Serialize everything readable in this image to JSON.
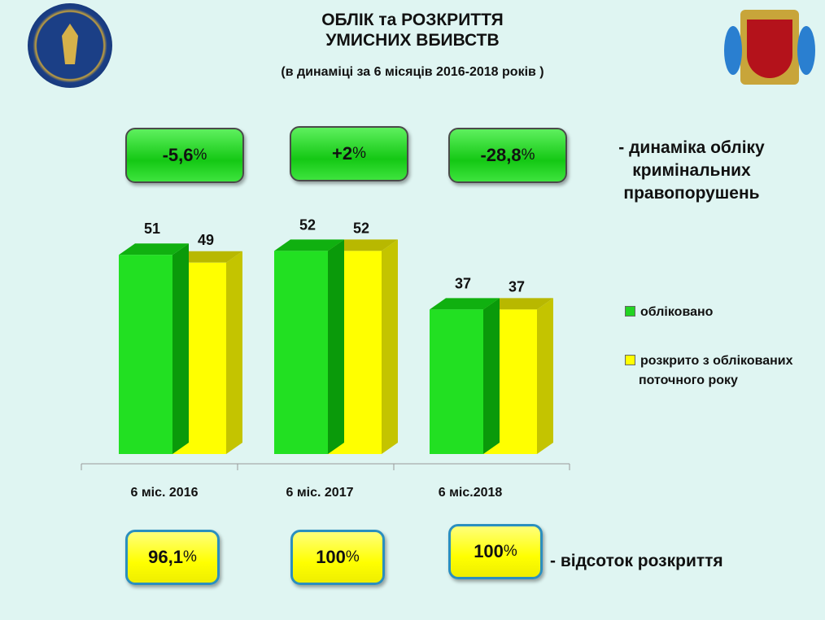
{
  "header": {
    "title_line1": "ОБЛІК та РОЗКРИТТЯ",
    "title_line2": "УМИСНИХ ВБИВСТВ",
    "subtitle": "(в динаміці за 6 місяців 2016-2018 років )"
  },
  "logos": {
    "left": "prosecutor-emblem",
    "right": "zaporizhzhia-coat-of-arms"
  },
  "dynamics": {
    "values": [
      "-5,6",
      "+2",
      "-28,8"
    ],
    "unit": "%",
    "label": "- динаміка обліку кримінальних правопорушень",
    "color": "#22d422"
  },
  "disclosure": {
    "values": [
      "96,1",
      "100",
      "100"
    ],
    "unit": "%",
    "label": "- відсоток розкриття",
    "color": "#ffff00"
  },
  "chart_data": {
    "type": "bar",
    "categories": [
      "6 міс. 2016",
      "6 міс. 2017",
      "6 міс.2018"
    ],
    "series": [
      {
        "name": "обліковано",
        "values": [
          51,
          52,
          37
        ],
        "color": "#22e022"
      },
      {
        "name": "розкрито з облікованих поточного року",
        "values": [
          49,
          52,
          37
        ],
        "color": "#ffff00"
      }
    ],
    "ylim": [
      0,
      55
    ],
    "grid": false,
    "legend": "right",
    "data_labels": true,
    "style": "3d"
  }
}
